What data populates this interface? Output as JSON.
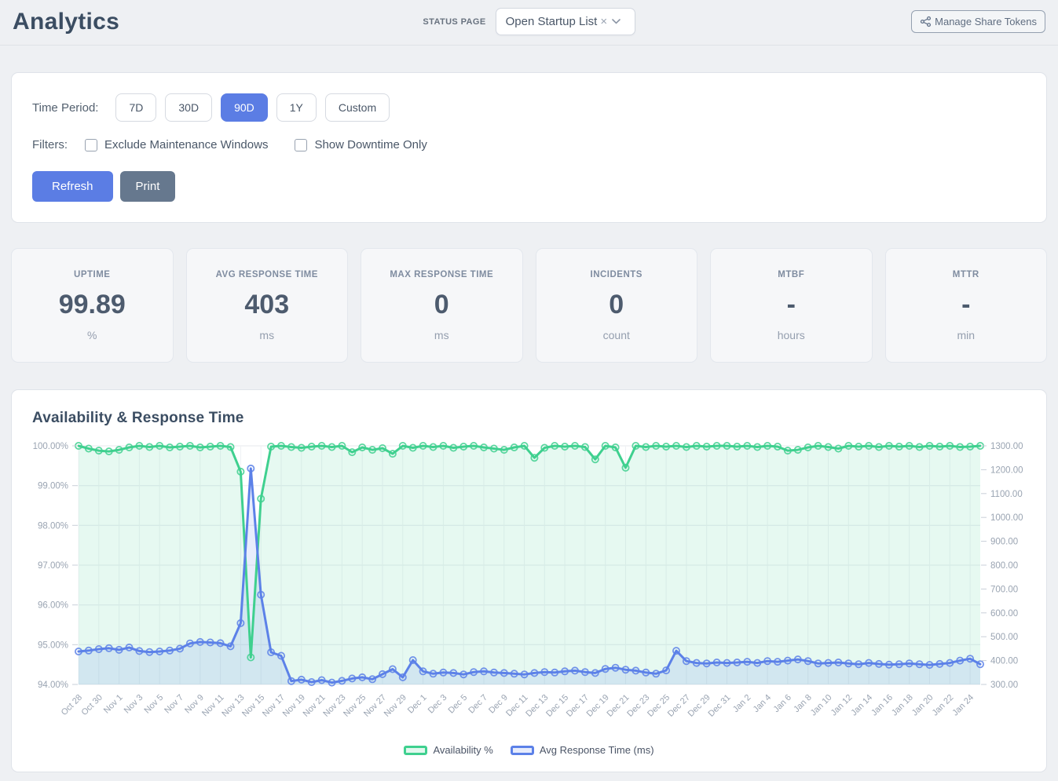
{
  "header": {
    "title": "Analytics",
    "status_page_label": "STATUS PAGE",
    "status_dropdown": {
      "value": "Open Startup List",
      "clear_icon": "×"
    },
    "manage_tokens_button": "Manage Share Tokens"
  },
  "filter_panel": {
    "time_period_label": "Time Period:",
    "periods": [
      {
        "label": "7D",
        "active": false
      },
      {
        "label": "30D",
        "active": false
      },
      {
        "label": "90D",
        "active": true
      },
      {
        "label": "1Y",
        "active": false
      },
      {
        "label": "Custom",
        "active": false
      }
    ],
    "filters_label": "Filters:",
    "checkboxes": [
      {
        "label": "Exclude Maintenance Windows",
        "checked": false
      },
      {
        "label": "Show Downtime Only",
        "checked": false
      }
    ],
    "refresh_button": "Refresh",
    "print_button": "Print"
  },
  "stats": [
    {
      "label": "UPTIME",
      "value": "99.89",
      "unit": "%"
    },
    {
      "label": "AVG RESPONSE TIME",
      "value": "403",
      "unit": "ms"
    },
    {
      "label": "MAX RESPONSE TIME",
      "value": "0",
      "unit": "ms"
    },
    {
      "label": "INCIDENTS",
      "value": "0",
      "unit": "count"
    },
    {
      "label": "MTBF",
      "value": "-",
      "unit": "hours"
    },
    {
      "label": "MTTR",
      "value": "-",
      "unit": "min"
    }
  ],
  "chart_panel": {
    "title": "Availability & Response Time"
  },
  "chart_data": {
    "type": "line",
    "title": "Availability & Response Time",
    "legend_position": "bottom",
    "grid": true,
    "x_labels": [
      "Oct 28",
      "Oct 30",
      "Nov 1",
      "Nov 3",
      "Nov 5",
      "Nov 7",
      "Nov 9",
      "Nov 11",
      "Nov 13",
      "Nov 15",
      "Nov 17",
      "Nov 19",
      "Nov 21",
      "Nov 23",
      "Nov 25",
      "Nov 27",
      "Nov 29",
      "Dec 1",
      "Dec 3",
      "Dec 5",
      "Dec 7",
      "Dec 9",
      "Dec 11",
      "Dec 13",
      "Dec 15",
      "Dec 17",
      "Dec 19",
      "Dec 21",
      "Dec 23",
      "Dec 25",
      "Dec 27",
      "Dec 29",
      "Dec 31",
      "Jan 2",
      "Jan 4",
      "Jan 6",
      "Jan 8",
      "Jan 10",
      "Jan 12",
      "Jan 14",
      "Jan 16",
      "Jan 18",
      "Jan 20",
      "Jan 22",
      "Jan 24"
    ],
    "left_axis": {
      "min": 94,
      "max": 100,
      "tick_labels": [
        "100.00%",
        "99.00%",
        "98.00%",
        "97.00%",
        "96.00%",
        "95.00%",
        "94.00%"
      ]
    },
    "right_axis": {
      "min": 300,
      "max": 1300,
      "tick_labels": [
        "1300.00",
        "1200.00",
        "1100.00",
        "1000.00",
        "900.00",
        "800.00",
        "700.00",
        "600.00",
        "500.00",
        "400.00",
        "300.00"
      ]
    },
    "series": [
      {
        "name": "Availability %",
        "axis": "left",
        "color": "#3fd08f",
        "fill_opacity": 0.13,
        "values": [
          100,
          99.93,
          99.88,
          99.86,
          99.9,
          99.96,
          100,
          99.97,
          100,
          99.96,
          99.98,
          100,
          99.96,
          99.98,
          100,
          99.97,
          99.35,
          94.68,
          98.67,
          99.98,
          100,
          99.97,
          99.95,
          99.98,
          100,
          99.97,
          100,
          99.84,
          99.96,
          99.9,
          99.94,
          99.8,
          100,
          99.95,
          100,
          99.97,
          100,
          99.95,
          99.98,
          100,
          99.96,
          99.93,
          99.9,
          99.96,
          100,
          99.7,
          99.95,
          100,
          99.98,
          100,
          99.97,
          99.66,
          100,
          99.96,
          99.45,
          100,
          99.97,
          100,
          99.98,
          100,
          99.97,
          100,
          99.98,
          100,
          100,
          99.98,
          100,
          99.97,
          100,
          99.98,
          99.88,
          99.9,
          99.96,
          100,
          99.97,
          99.93,
          100,
          99.98,
          100,
          99.97,
          100,
          99.98,
          100,
          99.97,
          100,
          99.98,
          100,
          99.97,
          99.98,
          100
        ]
      },
      {
        "name": "Avg Response Time (ms)",
        "axis": "right",
        "color": "#5c81e8",
        "fill_opacity": 0.14,
        "values": [
          438,
          442,
          448,
          452,
          445,
          455,
          440,
          436,
          438,
          442,
          450,
          472,
          478,
          476,
          473,
          460,
          557,
          1205,
          676,
          435,
          420,
          314,
          320,
          310,
          318,
          308,
          315,
          325,
          330,
          322,
          343,
          364,
          330,
          402,
          355,
          345,
          350,
          348,
          342,
          352,
          355,
          350,
          348,
          345,
          342,
          348,
          352,
          350,
          355,
          358,
          352,
          348,
          365,
          370,
          362,
          358,
          350,
          345,
          359,
          441,
          398,
          390,
          388,
          392,
          390,
          392,
          395,
          390,
          398,
          395,
          400,
          405,
          398,
          388,
          390,
          392,
          388,
          385,
          390,
          386,
          383,
          385,
          388,
          385,
          382,
          386,
          390,
          400,
          408,
          385
        ]
      }
    ]
  },
  "colors": {
    "accent_blue": "#5b7de4",
    "slate_button": "#66788e",
    "green": "#3fd08f",
    "blue": "#5c81e8"
  }
}
